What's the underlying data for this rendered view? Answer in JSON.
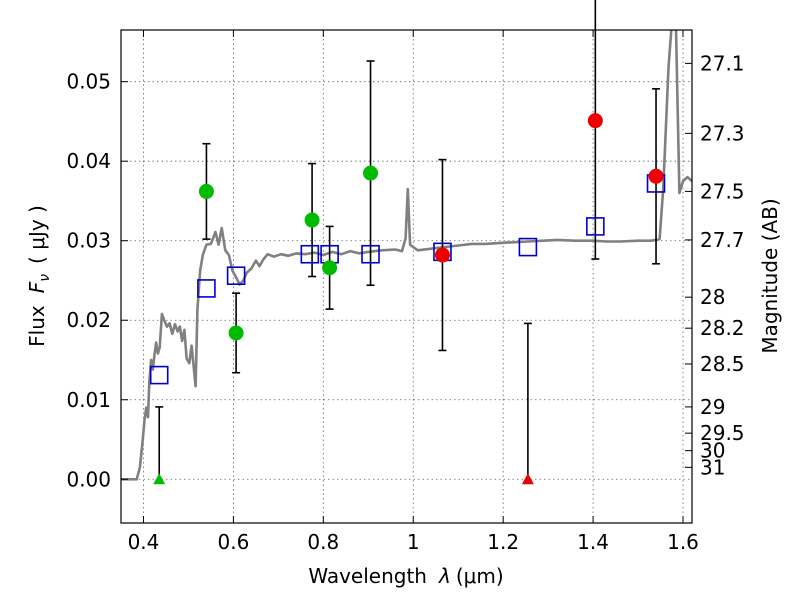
{
  "chart_data": {
    "type": "scatter",
    "xlabel_prefix": "Wavelength",
    "xlabel_unit": "(μm)",
    "xlabel_lambda": "λ",
    "ylabel": "Flux",
    "ylabel_symbol": "F",
    "ylabel_sub": "ν",
    "ylabel_unit": "( μJy )",
    "y2label": "Magnitude (AB)",
    "xlim": [
      0.35,
      1.62
    ],
    "ylim": [
      -0.0055,
      0.0565
    ],
    "xticks": [
      0.4,
      0.6,
      0.8,
      1.0,
      1.2,
      1.4,
      1.6
    ],
    "xtick_labels": [
      "0.4",
      "0.6",
      "0.8",
      "1",
      "1.2",
      "1.4",
      "1.6"
    ],
    "yticks": [
      0.0,
      0.01,
      0.02,
      0.03,
      0.04,
      0.05
    ],
    "ytick_labels": [
      "0.00",
      "0.01",
      "0.02",
      "0.03",
      "0.04",
      "0.05"
    ],
    "mag_ticks": [
      {
        "label": "27.1",
        "flux": 0.0523
      },
      {
        "label": "27.3",
        "flux": 0.0435
      },
      {
        "label": "27.5",
        "flux": 0.0362
      },
      {
        "label": "27.7",
        "flux": 0.0301
      },
      {
        "label": "28",
        "flux": 0.0229
      },
      {
        "label": "28.2",
        "flux": 0.019
      },
      {
        "label": "28.5",
        "flux": 0.0145
      },
      {
        "label": "29",
        "flux": 0.0091
      },
      {
        "label": "29.5",
        "flux": 0.0058
      },
      {
        "label": "30",
        "flux": 0.0036
      },
      {
        "label": "31",
        "flux": 0.0015
      }
    ],
    "colors": {
      "green": "#00bb00",
      "red": "#ee0000",
      "blue": "#0000cc",
      "sed": "#808080"
    },
    "green_points": [
      {
        "x": 0.54,
        "y": 0.0362,
        "yerr": 0.006
      },
      {
        "x": 0.606,
        "y": 0.0184,
        "yerr": 0.005
      },
      {
        "x": 0.775,
        "y": 0.0326,
        "yerr": 0.0071
      },
      {
        "x": 0.814,
        "y": 0.0266,
        "yerr": 0.0052
      },
      {
        "x": 0.905,
        "y": 0.0385,
        "yerr": 0.0141
      }
    ],
    "red_points": [
      {
        "x": 1.065,
        "y": 0.0282,
        "yerr": 0.012
      },
      {
        "x": 1.405,
        "y": 0.0451,
        "yerr": 0.0174
      },
      {
        "x": 1.54,
        "y": 0.0381,
        "yerr": 0.011
      }
    ],
    "upper_limits": [
      {
        "x": 0.435,
        "y": 0.0,
        "err_top": 0.0091,
        "color": "green"
      },
      {
        "x": 1.255,
        "y": 0.0,
        "err_top": 0.0196,
        "color": "red"
      }
    ],
    "model_points": [
      {
        "x": 0.435,
        "y": 0.0131
      },
      {
        "x": 0.54,
        "y": 0.024
      },
      {
        "x": 0.606,
        "y": 0.0256
      },
      {
        "x": 0.77,
        "y": 0.0283
      },
      {
        "x": 0.814,
        "y": 0.0283
      },
      {
        "x": 0.905,
        "y": 0.0283
      },
      {
        "x": 1.065,
        "y": 0.0286
      },
      {
        "x": 1.255,
        "y": 0.0292
      },
      {
        "x": 1.405,
        "y": 0.0318
      },
      {
        "x": 1.54,
        "y": 0.0372
      }
    ],
    "sed_curve": [
      [
        0.35,
        0.0
      ],
      [
        0.385,
        0.0
      ],
      [
        0.392,
        0.0015
      ],
      [
        0.398,
        0.0048
      ],
      [
        0.402,
        0.0073
      ],
      [
        0.406,
        0.009
      ],
      [
        0.41,
        0.0078
      ],
      [
        0.413,
        0.0122
      ],
      [
        0.417,
        0.015
      ],
      [
        0.421,
        0.0138
      ],
      [
        0.424,
        0.0155
      ],
      [
        0.428,
        0.0172
      ],
      [
        0.432,
        0.0158
      ],
      [
        0.436,
        0.0166
      ],
      [
        0.441,
        0.0208
      ],
      [
        0.446,
        0.02
      ],
      [
        0.452,
        0.0192
      ],
      [
        0.458,
        0.0196
      ],
      [
        0.464,
        0.0183
      ],
      [
        0.47,
        0.0195
      ],
      [
        0.476,
        0.0186
      ],
      [
        0.481,
        0.0192
      ],
      [
        0.486,
        0.0174
      ],
      [
        0.491,
        0.0188
      ],
      [
        0.496,
        0.0152
      ],
      [
        0.502,
        0.0146
      ],
      [
        0.507,
        0.0168
      ],
      [
        0.512,
        0.014
      ],
      [
        0.516,
        0.0117
      ],
      [
        0.52,
        0.0213
      ],
      [
        0.526,
        0.0262
      ],
      [
        0.532,
        0.0282
      ],
      [
        0.54,
        0.0295
      ],
      [
        0.55,
        0.0296
      ],
      [
        0.56,
        0.0311
      ],
      [
        0.567,
        0.0295
      ],
      [
        0.574,
        0.0316
      ],
      [
        0.582,
        0.0288
      ],
      [
        0.59,
        0.0282
      ],
      [
        0.598,
        0.0262
      ],
      [
        0.606,
        0.0254
      ],
      [
        0.614,
        0.0245
      ],
      [
        0.622,
        0.025
      ],
      [
        0.63,
        0.026
      ],
      [
        0.64,
        0.0265
      ],
      [
        0.65,
        0.0275
      ],
      [
        0.658,
        0.0268
      ],
      [
        0.666,
        0.0276
      ],
      [
        0.676,
        0.0283
      ],
      [
        0.69,
        0.028
      ],
      [
        0.706,
        0.0283
      ],
      [
        0.722,
        0.0281
      ],
      [
        0.74,
        0.0284
      ],
      [
        0.76,
        0.0283
      ],
      [
        0.78,
        0.0285
      ],
      [
        0.8,
        0.0282
      ],
      [
        0.82,
        0.0286
      ],
      [
        0.84,
        0.0283
      ],
      [
        0.86,
        0.0287
      ],
      [
        0.88,
        0.0284
      ],
      [
        0.9,
        0.0286
      ],
      [
        0.93,
        0.0288
      ],
      [
        0.96,
        0.0289
      ],
      [
        0.975,
        0.0287
      ],
      [
        0.983,
        0.0303
      ],
      [
        0.988,
        0.0365
      ],
      [
        0.993,
        0.0295
      ],
      [
        1.01,
        0.0288
      ],
      [
        1.04,
        0.029
      ],
      [
        1.07,
        0.0292
      ],
      [
        1.1,
        0.0294
      ],
      [
        1.13,
        0.0296
      ],
      [
        1.16,
        0.0296
      ],
      [
        1.19,
        0.0297
      ],
      [
        1.22,
        0.0298
      ],
      [
        1.255,
        0.0299
      ],
      [
        1.29,
        0.03
      ],
      [
        1.32,
        0.0301
      ],
      [
        1.36,
        0.03
      ],
      [
        1.4,
        0.03
      ],
      [
        1.43,
        0.0299
      ],
      [
        1.46,
        0.0299
      ],
      [
        1.5,
        0.03
      ],
      [
        1.53,
        0.03
      ],
      [
        1.548,
        0.0302
      ],
      [
        1.556,
        0.0365
      ],
      [
        1.568,
        0.052
      ],
      [
        1.576,
        0.058
      ],
      [
        1.584,
        0.058
      ],
      [
        1.592,
        0.036
      ],
      [
        1.6,
        0.0375
      ],
      [
        1.61,
        0.038
      ],
      [
        1.62,
        0.0375
      ]
    ]
  }
}
